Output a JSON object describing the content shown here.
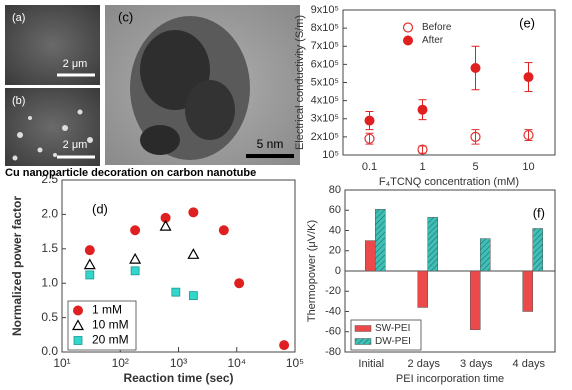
{
  "panels": [
    {
      "label": "(a)",
      "scale": "2 μm"
    },
    {
      "label": "(b)",
      "scale": "2 μm"
    },
    {
      "label": "(c)",
      "scale": "5 nm"
    }
  ],
  "chart_data": [
    {
      "type": "errorbar",
      "panel_label": "(e)",
      "ylabel": "Electrical conductivity (S/m)",
      "xlabel": "F₄TCNQ concentration (mM)",
      "categories": [
        "0.1",
        "1",
        "5",
        "10"
      ],
      "ylim": [
        100000,
        900000
      ],
      "yticks": [
        {
          "value": 100000,
          "label": "10⁵"
        },
        {
          "value": 200000,
          "label": "2x10⁵"
        },
        {
          "value": 300000,
          "label": "3x10⁵"
        },
        {
          "value": 400000,
          "label": "4x10⁵"
        },
        {
          "value": 500000,
          "label": "5x10⁵"
        },
        {
          "value": 600000,
          "label": "6x10⁵"
        },
        {
          "value": 700000,
          "label": "7x10⁵"
        },
        {
          "value": 800000,
          "label": "8x10⁵"
        },
        {
          "value": 900000,
          "label": "9x10⁵"
        }
      ],
      "legend": "top-left",
      "series": [
        {
          "name": "Before",
          "color": "#e03030",
          "marker": "open-circle",
          "values": [
            190000,
            130000,
            200000,
            210000
          ],
          "errors": [
            30000,
            20000,
            40000,
            30000
          ]
        },
        {
          "name": "After",
          "color": "#e02020",
          "marker": "circle",
          "values": [
            290000,
            350000,
            580000,
            530000
          ],
          "errors": [
            50000,
            55000,
            120000,
            80000
          ]
        }
      ]
    },
    {
      "type": "scatter",
      "title": "Cu nanoparticle decoration on carbon nanotube",
      "panel_label": "(d)",
      "ylabel": "Normalized power factor",
      "xlabel": "Reaction time (sec)",
      "xscale": "log",
      "xlim": [
        10,
        100000
      ],
      "xticks": [
        {
          "value": 10,
          "label": "10¹"
        },
        {
          "value": 100,
          "label": "10²"
        },
        {
          "value": 1000,
          "label": "10³"
        },
        {
          "value": 10000,
          "label": "10⁴"
        },
        {
          "value": 100000,
          "label": "10⁵"
        }
      ],
      "ylim": [
        0,
        2.5
      ],
      "yticks": [
        {
          "value": 0,
          "label": "0.0"
        },
        0.5,
        {
          "value": 1,
          "label": "1.0"
        },
        1.5,
        {
          "value": 2,
          "label": "2.0"
        },
        2.5
      ],
      "legend": "bottom-left",
      "series": [
        {
          "name": "1 mM",
          "color": "#e02020",
          "marker": "circle",
          "x": [
            30,
            180,
            600,
            1800,
            6000,
            11000,
            65000
          ],
          "values": [
            1.48,
            1.77,
            1.95,
            2.03,
            1.77,
            1.0,
            0.1
          ]
        },
        {
          "name": "10 mM",
          "color": "#000000",
          "marker": "open-triangle",
          "x": [
            30,
            180,
            600,
            1800
          ],
          "values": [
            1.27,
            1.35,
            1.83,
            1.42
          ]
        },
        {
          "name": "20 mM",
          "color": "#33d6cc",
          "marker": "square",
          "x": [
            30,
            180,
            900,
            1800
          ],
          "values": [
            1.12,
            1.18,
            0.87,
            0.82
          ]
        }
      ]
    },
    {
      "type": "bar",
      "panel_label": "(f)",
      "ylabel": "Thermopower (μV/K)",
      "xlabel": "PEI incorporation time",
      "categories": [
        "Initial",
        "2 days",
        "3 days",
        "4 days"
      ],
      "ylim": [
        -80,
        80
      ],
      "yticks": [
        -80,
        -60,
        -40,
        -20,
        0,
        20,
        40,
        60,
        80
      ],
      "legend": "bottom-left",
      "series": [
        {
          "name": "SW-PEI",
          "color": "#ec4a4a",
          "values": [
            30,
            -36,
            -58,
            -40
          ]
        },
        {
          "name": "DW-PEI",
          "color": "#3fbfb5",
          "hatch": true,
          "values": [
            61,
            53,
            32,
            42
          ]
        }
      ]
    }
  ]
}
